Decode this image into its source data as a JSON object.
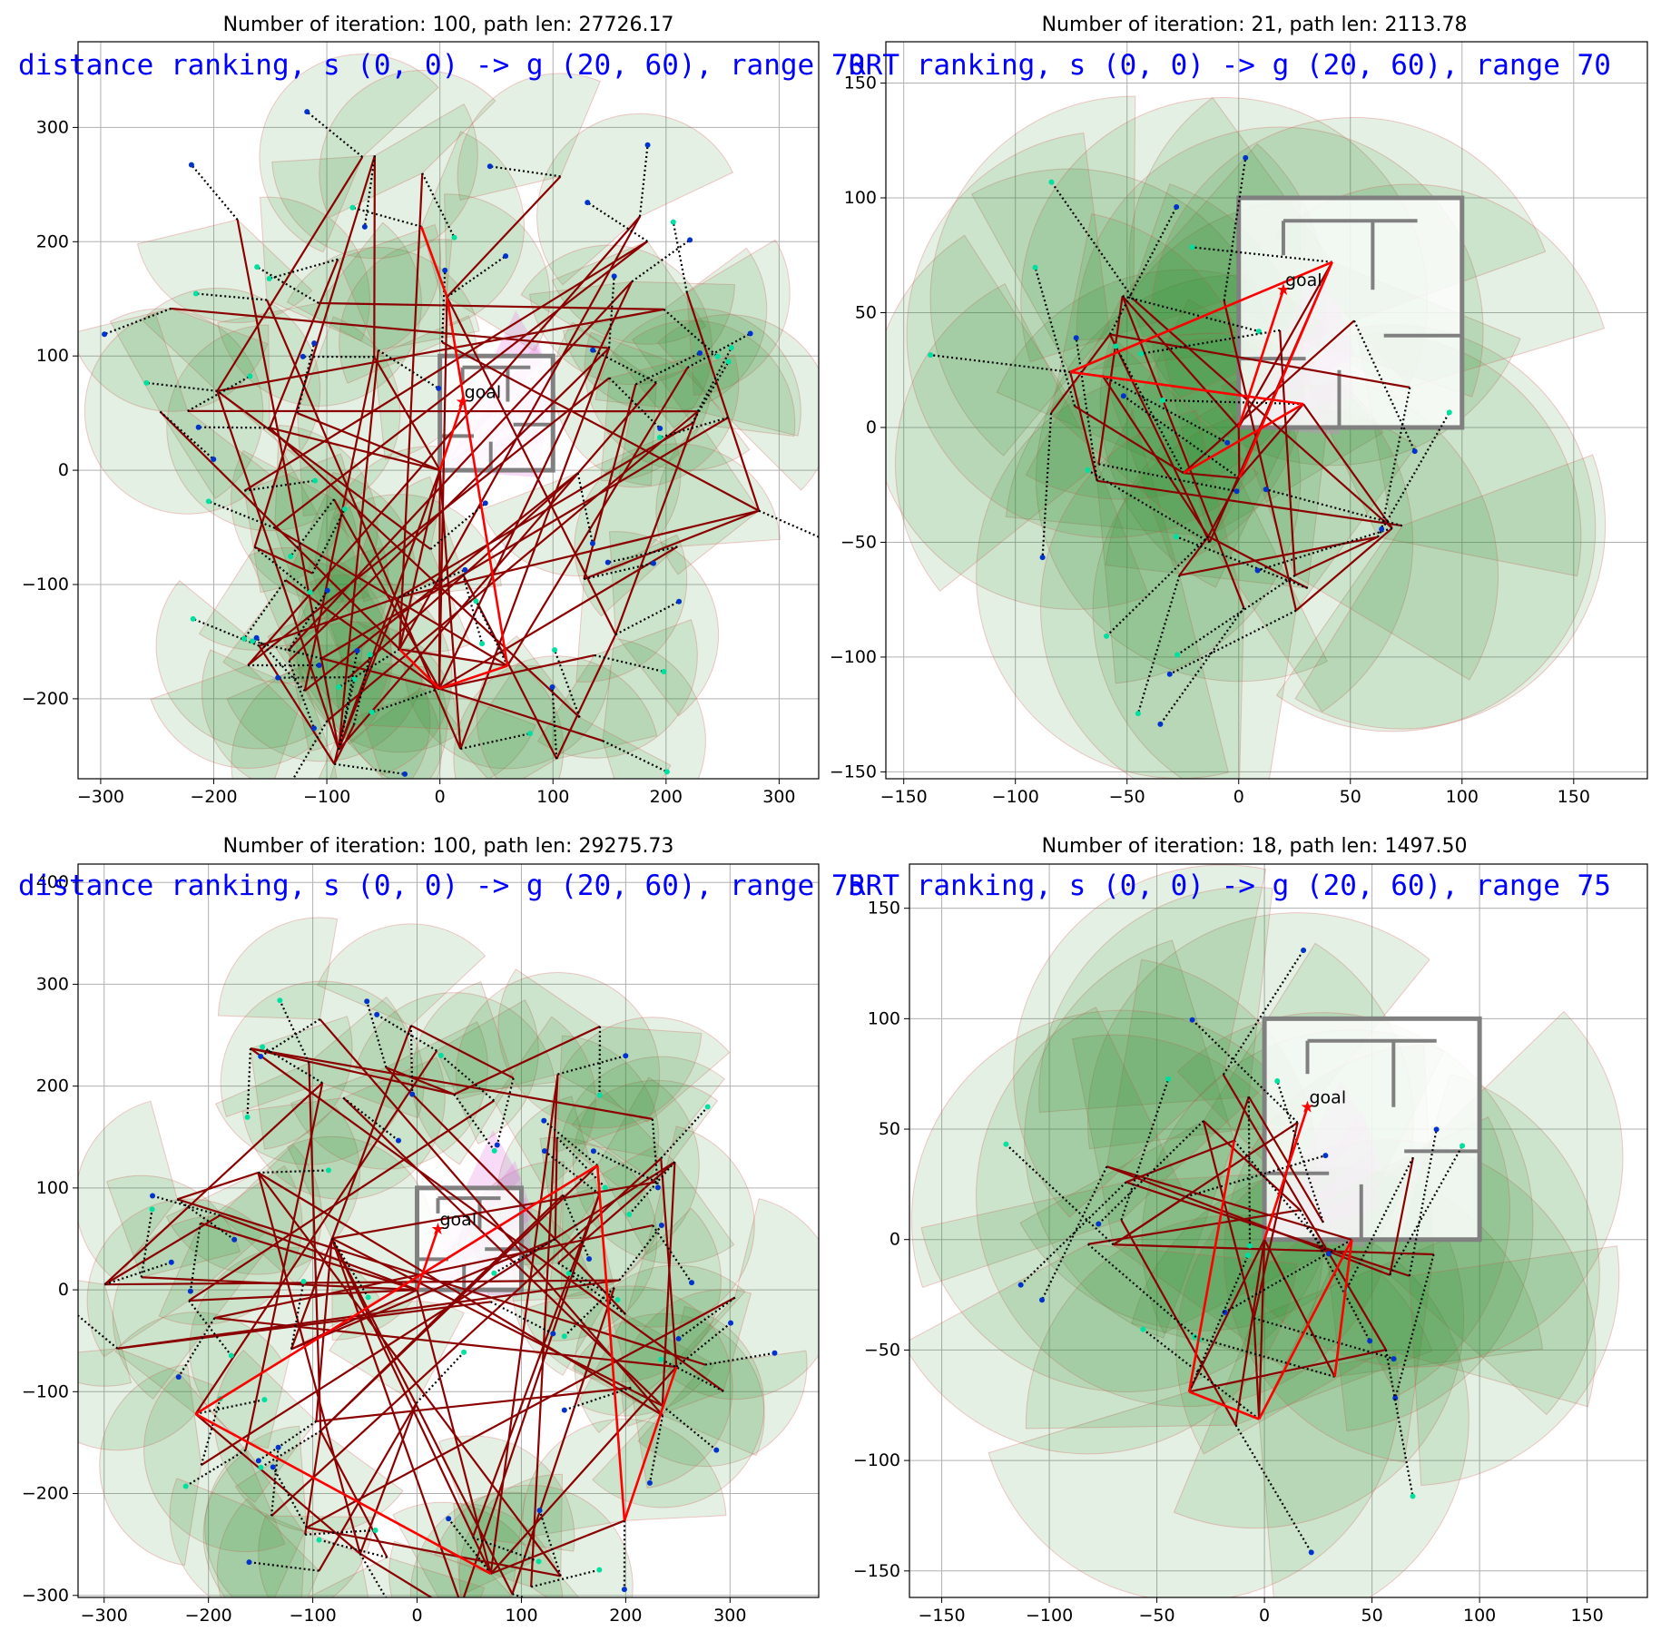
{
  "colors": {
    "grid": "#b0b0b0",
    "sector_fill": "#2e8b2e",
    "sector_edge": "#d9534f",
    "tree_edge": "#8b0000",
    "path": "#ff0000",
    "alt_path": "#a000a0",
    "dotted": "#000000",
    "goal_marker": "#ff0000",
    "overlay_text": "#0000ff",
    "visibility_fan": "#e070e0",
    "wall": "#808080",
    "node_blue": "#0033cc",
    "node_cyan": "#00e0a0"
  },
  "chart_data": [
    {
      "type": "scatter",
      "title": "Number of iteration: 100, path len: 27726.17",
      "overlay_text": "distance ranking, s (0, 0) -> g (20, 60), range 70",
      "xlim": [
        -320,
        335
      ],
      "ylim": [
        -270,
        375
      ],
      "xticks": [
        -300,
        -200,
        -100,
        0,
        100,
        200,
        300
      ],
      "yticks": [
        -200,
        -100,
        0,
        100,
        200,
        300
      ],
      "grid": true,
      "start": [
        0,
        0
      ],
      "goal": [
        20,
        60
      ],
      "goal_label": "goal",
      "range": 70,
      "iterations": 100,
      "path_len": 27726.17,
      "spread": 300
    },
    {
      "type": "scatter",
      "title": "Number of iteration: 21, path len: 2113.78",
      "overlay_text": "RRT ranking, s (0, 0) -> g (20, 60), range 70",
      "xlim": [
        -158,
        183
      ],
      "ylim": [
        -153,
        168
      ],
      "xticks": [
        -150,
        -100,
        -50,
        0,
        50,
        100,
        150
      ],
      "yticks": [
        -150,
        -100,
        -50,
        0,
        50,
        100,
        150
      ],
      "grid": true,
      "start": [
        0,
        0
      ],
      "goal": [
        20,
        60
      ],
      "goal_label": "goal",
      "range": 70,
      "iterations": 21,
      "path_len": 2113.78,
      "spread": 90
    },
    {
      "type": "scatter",
      "title": "Number of iteration: 100, path len: 29275.73",
      "overlay_text": "distance ranking, s (0, 0) -> g (20, 60), range 75",
      "xlim": [
        -325,
        385
      ],
      "ylim": [
        -302,
        418
      ],
      "xticks": [
        -300,
        -200,
        -100,
        0,
        100,
        200,
        300
      ],
      "yticks": [
        -300,
        -200,
        -100,
        0,
        100,
        200,
        300,
        400
      ],
      "grid": true,
      "start": [
        0,
        0
      ],
      "goal": [
        20,
        60
      ],
      "goal_label": "goal",
      "range": 75,
      "iterations": 100,
      "path_len": 29275.73,
      "spread": 330
    },
    {
      "type": "scatter",
      "title": "Number of iteration: 18, path len: 1497.50",
      "overlay_text": "RRT ranking, s (0, 0) -> g (20, 60), range 75",
      "xlim": [
        -165,
        178
      ],
      "ylim": [
        -162,
        170
      ],
      "xticks": [
        -150,
        -100,
        -50,
        0,
        50,
        100,
        150
      ],
      "yticks": [
        -150,
        -100,
        -50,
        0,
        50,
        100,
        150
      ],
      "grid": true,
      "start": [
        0,
        0
      ],
      "goal": [
        20,
        60
      ],
      "goal_label": "goal",
      "range": 75,
      "iterations": 18,
      "path_len": 1497.5,
      "spread": 90
    }
  ]
}
